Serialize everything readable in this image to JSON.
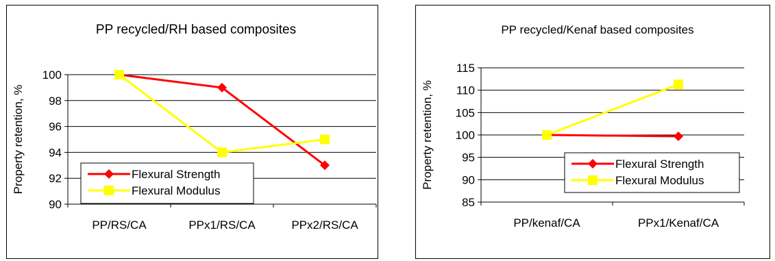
{
  "chart_data": [
    {
      "type": "line",
      "title": "PP recycled/RH based composites",
      "xlabel": "",
      "ylabel": "Property retention, %",
      "categories": [
        "PP/RS/CA",
        "PPx1/RS/CA",
        "PPx2/RS/CA"
      ],
      "ylim": [
        90,
        100
      ],
      "yticks": [
        90,
        92,
        94,
        96,
        98,
        100
      ],
      "grid": true,
      "legend_position": "bottom-left",
      "series": [
        {
          "name": "Flexural Strength",
          "values": [
            100,
            99,
            93
          ],
          "color": "#ff0000",
          "marker": "diamond"
        },
        {
          "name": "Flexural Modulus",
          "values": [
            100,
            94,
            95
          ],
          "color": "#ffff00",
          "marker": "square"
        }
      ]
    },
    {
      "type": "line",
      "title": "PP recycled/Kenaf based composites",
      "xlabel": "",
      "ylabel": "Property retention, %",
      "categories": [
        "PP/kenaf/CA",
        "PPx1/Kenaf/CA"
      ],
      "ylim": [
        85,
        115
      ],
      "yticks": [
        85,
        90,
        95,
        100,
        105,
        110,
        115
      ],
      "grid": true,
      "legend_position": "bottom-right",
      "series": [
        {
          "name": "Flexural Strength",
          "values": [
            100,
            99.7
          ],
          "color": "#ff0000",
          "marker": "diamond"
        },
        {
          "name": "Flexural Modulus",
          "values": [
            100,
            111.3
          ],
          "color": "#ffff00",
          "marker": "square"
        }
      ]
    }
  ]
}
